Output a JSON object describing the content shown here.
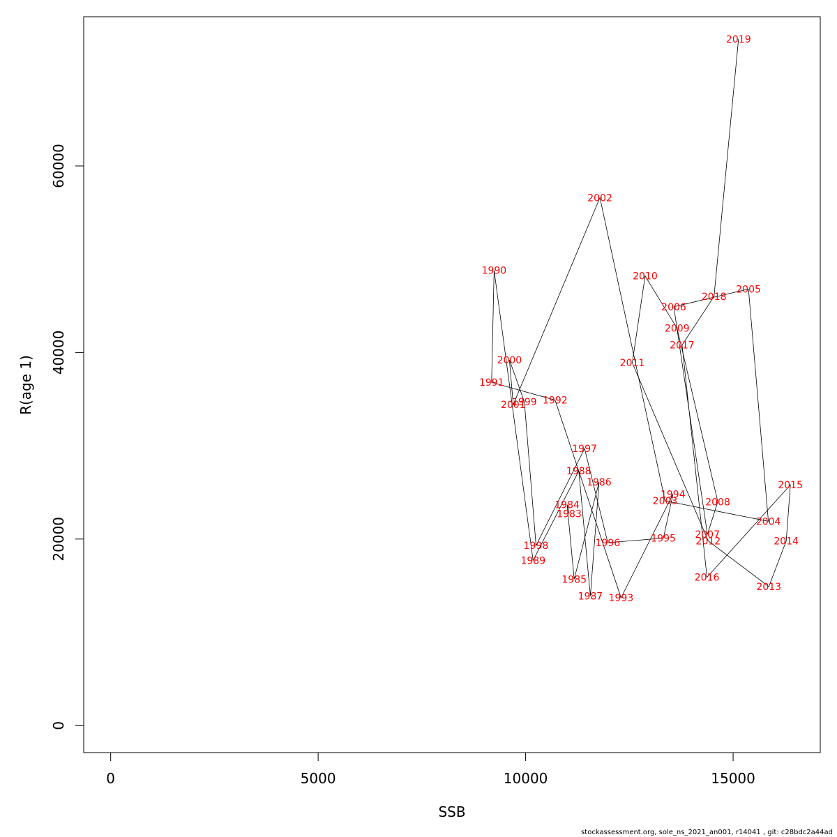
{
  "chart_data": {
    "type": "scatter",
    "xlabel": "SSB",
    "ylabel": "R(age 1)",
    "xlim": [
      -650,
      17100
    ],
    "ylim": [
      -2900,
      76000
    ],
    "xticks": [
      0,
      5000,
      10000,
      15000
    ],
    "yticks": [
      0,
      20000,
      40000,
      60000
    ],
    "xtick_labels": [
      "0",
      "5000",
      "10000",
      "15000"
    ],
    "ytick_labels": [
      "0",
      "20000",
      "40000",
      "60000"
    ],
    "line_color": "#000000",
    "label_color": "#ff0000",
    "points": [
      {
        "label": "1983",
        "x": 11050,
        "y": 22700
      },
      {
        "label": "1984",
        "x": 11000,
        "y": 23700
      },
      {
        "label": "1985",
        "x": 11170,
        "y": 15700
      },
      {
        "label": "1986",
        "x": 11770,
        "y": 26100
      },
      {
        "label": "1987",
        "x": 11560,
        "y": 13900
      },
      {
        "label": "1988",
        "x": 11280,
        "y": 27300
      },
      {
        "label": "1989",
        "x": 10180,
        "y": 17700
      },
      {
        "label": "1990",
        "x": 9240,
        "y": 48800
      },
      {
        "label": "1991",
        "x": 9180,
        "y": 36800
      },
      {
        "label": "1992",
        "x": 10710,
        "y": 34900
      },
      {
        "label": "1993",
        "x": 12300,
        "y": 13700
      },
      {
        "label": "1994",
        "x": 13550,
        "y": 24800
      },
      {
        "label": "1995",
        "x": 13320,
        "y": 20100
      },
      {
        "label": "1996",
        "x": 11980,
        "y": 19600
      },
      {
        "label": "1997",
        "x": 11420,
        "y": 29700
      },
      {
        "label": "1998",
        "x": 10250,
        "y": 19300
      },
      {
        "label": "1999",
        "x": 9970,
        "y": 34700
      },
      {
        "label": "2000",
        "x": 9610,
        "y": 39200
      },
      {
        "label": "2001",
        "x": 9700,
        "y": 34400
      },
      {
        "label": "2002",
        "x": 11790,
        "y": 56600
      },
      {
        "label": "2003",
        "x": 13360,
        "y": 24100
      },
      {
        "label": "2004",
        "x": 15850,
        "y": 21900
      },
      {
        "label": "2005",
        "x": 15370,
        "y": 46800
      },
      {
        "label": "2006",
        "x": 13570,
        "y": 44900
      },
      {
        "label": "2007",
        "x": 14380,
        "y": 20500
      },
      {
        "label": "2008",
        "x": 14630,
        "y": 24000
      },
      {
        "label": "2009",
        "x": 13650,
        "y": 42600
      },
      {
        "label": "2010",
        "x": 12880,
        "y": 48200
      },
      {
        "label": "2011",
        "x": 12570,
        "y": 38900
      },
      {
        "label": "2012",
        "x": 14400,
        "y": 19800
      },
      {
        "label": "2013",
        "x": 15860,
        "y": 14900
      },
      {
        "label": "2014",
        "x": 16280,
        "y": 19800
      },
      {
        "label": "2015",
        "x": 16380,
        "y": 25800
      },
      {
        "label": "2016",
        "x": 14370,
        "y": 15900
      },
      {
        "label": "2017",
        "x": 13770,
        "y": 40800
      },
      {
        "label": "2018",
        "x": 14540,
        "y": 46000
      },
      {
        "label": "2019",
        "x": 15130,
        "y": 73600
      }
    ]
  },
  "footer_text": "stockassessment.org, sole_ns_2021_an001, r14041 , git: c28bdc2a44ad"
}
